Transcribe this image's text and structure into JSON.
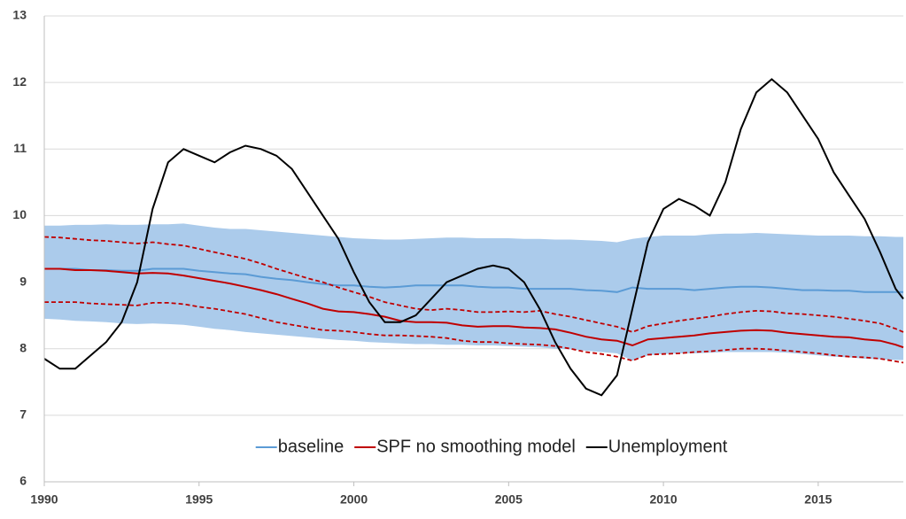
{
  "chart_data": {
    "type": "line",
    "x": [
      1990,
      1990.5,
      1991,
      1991.5,
      1992,
      1992.5,
      1993,
      1993.5,
      1994,
      1994.5,
      1995,
      1995.5,
      1996,
      1996.5,
      1997,
      1997.5,
      1998,
      1998.5,
      1999,
      1999.5,
      2000,
      2000.5,
      2001,
      2001.5,
      2002,
      2002.5,
      2003,
      2003.5,
      2004,
      2004.5,
      2005,
      2005.5,
      2006,
      2006.5,
      2007,
      2007.5,
      2008,
      2008.5,
      2009,
      2009.5,
      2010,
      2010.5,
      2011,
      2011.5,
      2012,
      2012.5,
      2013,
      2013.5,
      2014,
      2014.5,
      2015,
      2015.5,
      2016,
      2016.5,
      2017,
      2017.5,
      2017.75
    ],
    "xlim": [
      1990,
      2017.75
    ],
    "xticks": [
      1990,
      1995,
      2000,
      2005,
      2010,
      2015
    ],
    "ylim": [
      6,
      13
    ],
    "yticks": [
      6,
      7,
      8,
      9,
      10,
      11,
      12,
      13
    ],
    "grid": true,
    "legend": "bottom",
    "series": [
      {
        "name": "baseline",
        "color": "#5b9bd5",
        "band_color": "#abcbeb",
        "values": [
          9.2,
          9.2,
          9.2,
          9.18,
          9.18,
          9.17,
          9.17,
          9.2,
          9.2,
          9.2,
          9.17,
          9.15,
          9.13,
          9.12,
          9.08,
          9.05,
          9.03,
          9.0,
          8.97,
          8.95,
          8.95,
          8.93,
          8.92,
          8.93,
          8.95,
          8.95,
          8.95,
          8.95,
          8.93,
          8.92,
          8.92,
          8.9,
          8.9,
          8.9,
          8.9,
          8.88,
          8.87,
          8.85,
          8.92,
          8.9,
          8.9,
          8.9,
          8.88,
          8.9,
          8.92,
          8.93,
          8.93,
          8.92,
          8.9,
          8.88,
          8.88,
          8.87,
          8.87,
          8.85,
          8.85,
          8.85,
          8.85
        ],
        "upper": [
          9.85,
          9.85,
          9.86,
          9.86,
          9.87,
          9.86,
          9.86,
          9.87,
          9.87,
          9.88,
          9.85,
          9.82,
          9.8,
          9.8,
          9.78,
          9.76,
          9.74,
          9.72,
          9.7,
          9.68,
          9.66,
          9.65,
          9.64,
          9.64,
          9.65,
          9.66,
          9.67,
          9.67,
          9.66,
          9.66,
          9.66,
          9.65,
          9.65,
          9.64,
          9.64,
          9.63,
          9.62,
          9.6,
          9.65,
          9.68,
          9.7,
          9.7,
          9.7,
          9.72,
          9.73,
          9.73,
          9.74,
          9.73,
          9.72,
          9.71,
          9.7,
          9.7,
          9.7,
          9.69,
          9.69,
          9.68,
          9.68
        ],
        "lower": [
          8.45,
          8.44,
          8.42,
          8.41,
          8.4,
          8.38,
          8.37,
          8.38,
          8.37,
          8.36,
          8.33,
          8.3,
          8.28,
          8.25,
          8.23,
          8.21,
          8.19,
          8.17,
          8.15,
          8.13,
          8.12,
          8.1,
          8.09,
          8.08,
          8.07,
          8.07,
          8.06,
          8.06,
          8.05,
          8.05,
          8.04,
          8.03,
          8.02,
          8.0,
          7.99,
          7.97,
          7.95,
          7.93,
          7.82,
          7.9,
          7.92,
          7.93,
          7.93,
          7.94,
          7.95,
          7.95,
          7.95,
          7.95,
          7.94,
          7.92,
          7.9,
          7.88,
          7.87,
          7.85,
          7.84,
          7.83,
          7.83
        ]
      },
      {
        "name": "SPF no smoothing model",
        "color": "#c00000",
        "band_style": "dashed",
        "values": [
          9.2,
          9.2,
          9.18,
          9.18,
          9.17,
          9.15,
          9.13,
          9.14,
          9.13,
          9.1,
          9.06,
          9.02,
          8.98,
          8.93,
          8.88,
          8.82,
          8.75,
          8.68,
          8.6,
          8.56,
          8.55,
          8.52,
          8.48,
          8.42,
          8.4,
          8.4,
          8.39,
          8.35,
          8.33,
          8.34,
          8.34,
          8.32,
          8.31,
          8.29,
          8.24,
          8.18,
          8.14,
          8.12,
          8.05,
          8.14,
          8.16,
          8.18,
          8.2,
          8.23,
          8.25,
          8.27,
          8.28,
          8.27,
          8.24,
          8.22,
          8.2,
          8.18,
          8.17,
          8.14,
          8.12,
          8.06,
          8.02
        ],
        "upper": [
          9.68,
          9.67,
          9.65,
          9.63,
          9.62,
          9.6,
          9.58,
          9.6,
          9.57,
          9.55,
          9.5,
          9.45,
          9.4,
          9.35,
          9.28,
          9.2,
          9.13,
          9.06,
          9.0,
          8.92,
          8.85,
          8.78,
          8.7,
          8.65,
          8.6,
          8.58,
          8.6,
          8.58,
          8.55,
          8.55,
          8.56,
          8.55,
          8.57,
          8.52,
          8.48,
          8.43,
          8.38,
          8.33,
          8.25,
          8.34,
          8.38,
          8.42,
          8.45,
          8.48,
          8.52,
          8.55,
          8.57,
          8.56,
          8.53,
          8.52,
          8.5,
          8.48,
          8.45,
          8.42,
          8.38,
          8.3,
          8.25
        ],
        "lower": [
          8.7,
          8.7,
          8.7,
          8.68,
          8.67,
          8.66,
          8.65,
          8.69,
          8.69,
          8.67,
          8.63,
          8.6,
          8.56,
          8.52,
          8.46,
          8.4,
          8.36,
          8.32,
          8.28,
          8.27,
          8.25,
          8.22,
          8.2,
          8.2,
          8.19,
          8.18,
          8.16,
          8.12,
          8.1,
          8.1,
          8.08,
          8.07,
          8.06,
          8.04,
          8.0,
          7.95,
          7.92,
          7.88,
          7.82,
          7.91,
          7.92,
          7.93,
          7.95,
          7.96,
          7.98,
          8.0,
          8.0,
          7.99,
          7.97,
          7.95,
          7.93,
          7.9,
          7.88,
          7.87,
          7.85,
          7.81,
          7.79
        ]
      },
      {
        "name": "Unemployment",
        "color": "#000000",
        "values": [
          7.85,
          7.7,
          7.7,
          7.9,
          8.1,
          8.4,
          9.0,
          10.1,
          10.8,
          11.0,
          10.9,
          10.8,
          10.95,
          11.05,
          11.0,
          10.9,
          10.7,
          10.35,
          10.0,
          9.65,
          9.15,
          8.7,
          8.4,
          8.4,
          8.5,
          8.75,
          9.0,
          9.1,
          9.2,
          9.25,
          9.2,
          9.0,
          8.6,
          8.1,
          7.7,
          7.4,
          7.3,
          7.6,
          8.6,
          9.6,
          10.1,
          10.25,
          10.15,
          10.0,
          10.5,
          11.3,
          11.85,
          12.05,
          11.85,
          11.5,
          11.15,
          10.65,
          10.3,
          9.95,
          9.45,
          8.9,
          8.75
        ]
      }
    ]
  }
}
